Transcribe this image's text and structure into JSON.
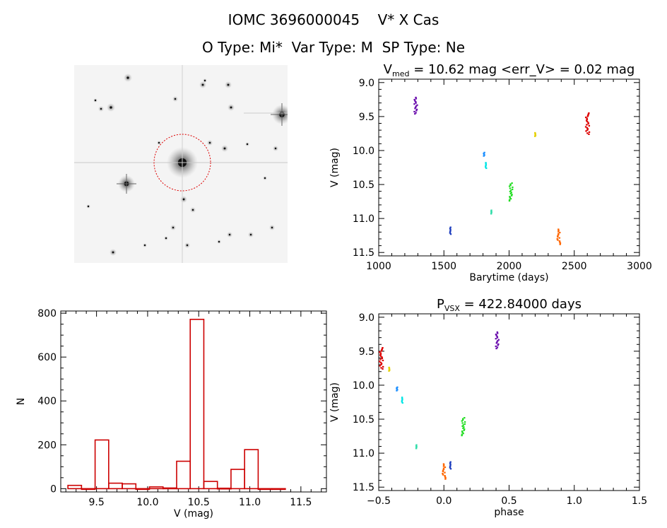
{
  "header": {
    "line1": "IOMC 3696000045    V* X Cas",
    "line2": "O Type: Mi*  Var Type: M  SP Type: Ne"
  },
  "colors": {
    "histogram": "#cc0000",
    "finder_circle": "#dd0000"
  },
  "chart_data": [
    {
      "type": "scatter",
      "id": "lightcurve",
      "title": "V_med = 10.62 mag <err_V> = 0.02 mag",
      "title_parts": {
        "prefix": "V",
        "sub": "med",
        "rest": " = 10.62 mag <err_V> = 0.02 mag"
      },
      "xlabel": "Barytime (days)",
      "ylabel": "V (mag)",
      "xlim": [
        1000,
        3000
      ],
      "ylim": [
        11.55,
        8.95
      ],
      "y_inverted": true,
      "xticks": [
        1000,
        1500,
        2000,
        2500,
        3000
      ],
      "xtick_labels": [
        "1000",
        "1500",
        "2000",
        "2500",
        "3000"
      ],
      "yticks": [
        9.0,
        9.5,
        10.0,
        10.5,
        11.0,
        11.5
      ],
      "ytick_labels": [
        "9.0",
        "9.5",
        "10.0",
        "10.5",
        "11.0",
        "11.5"
      ],
      "groups": [
        {
          "x": 1285,
          "y_range": [
            9.22,
            9.46
          ],
          "color": "#6a0dad"
        },
        {
          "x": 1550,
          "y_range": [
            11.13,
            11.23
          ],
          "color": "#1f3fbf"
        },
        {
          "x": 1808,
          "y_range": [
            10.03,
            10.08
          ],
          "color": "#1e90ff"
        },
        {
          "x": 1822,
          "y_range": [
            10.18,
            10.26
          ],
          "color": "#00e5e5"
        },
        {
          "x": 1865,
          "y_range": [
            10.88,
            10.93
          ],
          "color": "#33ddaa"
        },
        {
          "x": 2015,
          "y_range": [
            10.48,
            10.74
          ],
          "color": "#22dd22"
        },
        {
          "x": 2200,
          "y_range": [
            9.74,
            9.79
          ],
          "color": "#e5d000"
        },
        {
          "x": 2380,
          "y_range": [
            11.16,
            11.38
          ],
          "color": "#ff6600"
        },
        {
          "x": 2602,
          "y_range": [
            9.45,
            9.76
          ],
          "color": "#dd0000"
        }
      ]
    },
    {
      "type": "bar",
      "id": "histogram",
      "title": "",
      "xlabel": "V (mag)",
      "ylabel": "N",
      "xlim": [
        9.15,
        11.75
      ],
      "ylim": [
        -15,
        810
      ],
      "xticks": [
        9.5,
        10.0,
        10.5,
        11.0,
        11.5
      ],
      "xtick_labels": [
        "9.5",
        "10.0",
        "10.5",
        "11.0",
        "11.5"
      ],
      "yticks": [
        0,
        200,
        400,
        600,
        800
      ],
      "ytick_labels": [
        "0",
        "200",
        "400",
        "600",
        "800"
      ],
      "bin_width": 0.133,
      "bin_starts": [
        9.22,
        9.353,
        9.486,
        9.619,
        9.752,
        9.885,
        10.018,
        10.151,
        10.284,
        10.417,
        10.55,
        10.683,
        10.816,
        10.949,
        11.082,
        11.215
      ],
      "values": [
        15,
        0,
        222,
        25,
        22,
        0,
        8,
        3,
        125,
        772,
        33,
        2,
        88,
        178,
        0,
        0
      ]
    },
    {
      "type": "scatter",
      "id": "phased",
      "title": "P_VSX = 422.84000 days",
      "title_parts": {
        "prefix": "P",
        "sub": "VSX",
        "rest": " = 422.84000 days"
      },
      "xlabel": "phase",
      "ylabel": "V (mag)",
      "xlim": [
        -0.5,
        1.5
      ],
      "ylim": [
        11.55,
        8.95
      ],
      "y_inverted": true,
      "xticks": [
        -0.5,
        0.0,
        0.5,
        1.0,
        1.5
      ],
      "xtick_labels": [
        "−0.5",
        "0.0",
        "0.5",
        "1.0",
        "1.5"
      ],
      "yticks": [
        9.0,
        9.5,
        10.0,
        10.5,
        11.0,
        11.5
      ],
      "ytick_labels": [
        "9.0",
        "9.5",
        "10.0",
        "10.5",
        "11.0",
        "11.5"
      ],
      "groups": [
        {
          "x": 0.41,
          "y_range": [
            9.22,
            9.46
          ],
          "color": "#6a0dad"
        },
        {
          "x": 0.05,
          "y_range": [
            11.13,
            11.23
          ],
          "color": "#1f3fbf"
        },
        {
          "x": -0.36,
          "y_range": [
            10.03,
            10.08
          ],
          "color": "#1e90ff"
        },
        {
          "x": -0.32,
          "y_range": [
            10.18,
            10.26
          ],
          "color": "#00e5e5"
        },
        {
          "x": -0.21,
          "y_range": [
            10.88,
            10.93
          ],
          "color": "#33ddaa"
        },
        {
          "x": 0.15,
          "y_range": [
            10.48,
            10.74
          ],
          "color": "#22dd22"
        },
        {
          "x": -0.42,
          "y_range": [
            9.74,
            9.79
          ],
          "color": "#e5d000"
        },
        {
          "x": 0.0,
          "y_range": [
            11.16,
            11.38
          ],
          "color": "#ff6600"
        },
        {
          "x": -0.48,
          "y_range": [
            9.45,
            9.76
          ],
          "color": "#dd0000"
        }
      ]
    }
  ]
}
